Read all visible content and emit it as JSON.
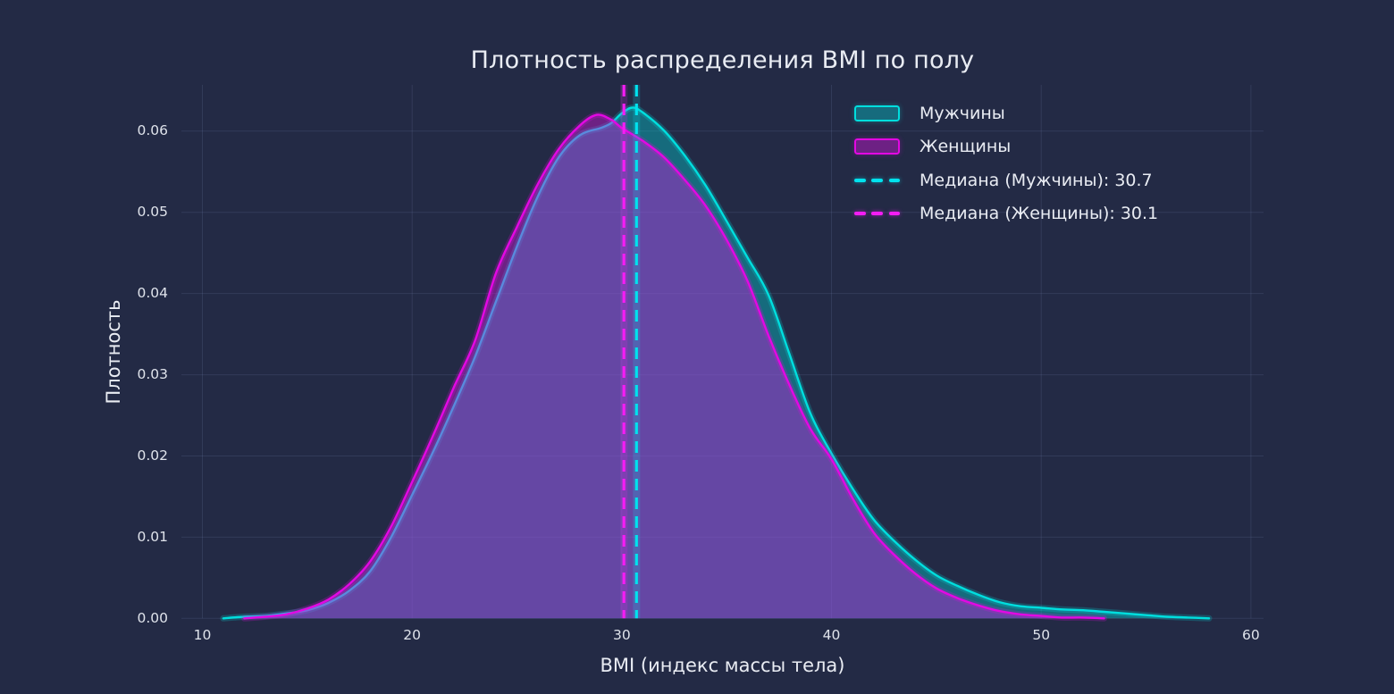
{
  "figure": {
    "background": "#232a45",
    "text_color": "#e9ecf3",
    "tick_color": "#dfe3eb",
    "grid_color": "rgba(145,165,215,0.14)"
  },
  "title": "Плотность распределения BMI по полу",
  "axes": {
    "x": {
      "label": "BMI (индекс массы тела)",
      "ticks": [
        "10",
        "20",
        "30",
        "40",
        "50",
        "60"
      ],
      "tick_values": [
        10,
        20,
        30,
        40,
        50,
        60
      ]
    },
    "y": {
      "label": "Плотность",
      "ticks": [
        "0.00",
        "0.01",
        "0.02",
        "0.03",
        "0.04",
        "0.05",
        "0.06"
      ],
      "tick_values": [
        0,
        0.01,
        0.02,
        0.03,
        0.04,
        0.05,
        0.06
      ]
    }
  },
  "chart_data": {
    "type": "area",
    "title": "Плотность распределения BMI по полу",
    "xlabel": "BMI (индекс массы тела)",
    "ylabel": "Плотность",
    "xlim": [
      9.0,
      60.6
    ],
    "ylim": [
      0,
      0.0657
    ],
    "grid": true,
    "legend_position": "upper right",
    "series": [
      {
        "name": "Мужчины",
        "line_color": "#00dede",
        "fill_color": "rgba(0,229,229,0.35)",
        "median": 30.7,
        "points": [
          [
            11,
            0
          ],
          [
            12,
            0.0002
          ],
          [
            13,
            0.0003
          ],
          [
            14,
            0.0006
          ],
          [
            15,
            0.001
          ],
          [
            16,
            0.0019
          ],
          [
            17,
            0.0034
          ],
          [
            18,
            0.0058
          ],
          [
            19,
            0.01
          ],
          [
            20,
            0.0152
          ],
          [
            21,
            0.0205
          ],
          [
            22,
            0.0262
          ],
          [
            23,
            0.0322
          ],
          [
            24,
            0.039
          ],
          [
            25,
            0.0458
          ],
          [
            26,
            0.052
          ],
          [
            27,
            0.0568
          ],
          [
            28,
            0.0595
          ],
          [
            29,
            0.0604
          ],
          [
            29.5,
            0.061
          ],
          [
            30,
            0.0622
          ],
          [
            30.5,
            0.0629
          ],
          [
            31,
            0.0623
          ],
          [
            32,
            0.0601
          ],
          [
            33,
            0.057
          ],
          [
            34,
            0.0533
          ],
          [
            35,
            0.0489
          ],
          [
            36,
            0.0444
          ],
          [
            37,
            0.0398
          ],
          [
            38,
            0.0325
          ],
          [
            39,
            0.0252
          ],
          [
            40,
            0.0203
          ],
          [
            41,
            0.016
          ],
          [
            42,
            0.0122
          ],
          [
            43,
            0.0095
          ],
          [
            44,
            0.0072
          ],
          [
            45,
            0.0053
          ],
          [
            46,
            0.004
          ],
          [
            47,
            0.0029
          ],
          [
            48,
            0.002
          ],
          [
            49,
            0.0015
          ],
          [
            50,
            0.0013
          ],
          [
            51,
            0.0011
          ],
          [
            52,
            0.001
          ],
          [
            53,
            0.0008
          ],
          [
            54,
            0.0006
          ],
          [
            55,
            0.0004
          ],
          [
            56,
            0.0002
          ],
          [
            57,
            0.0001
          ],
          [
            58,
            0
          ]
        ]
      },
      {
        "name": "Женщины",
        "line_color": "#e308e3",
        "fill_color": "rgba(213,22,219,0.42)",
        "median": 30.1,
        "points": [
          [
            12,
            0
          ],
          [
            13,
            0.0002
          ],
          [
            14,
            0.0005
          ],
          [
            15,
            0.0012
          ],
          [
            16,
            0.0023
          ],
          [
            17,
            0.0042
          ],
          [
            18,
            0.007
          ],
          [
            19,
            0.0113
          ],
          [
            20,
            0.0168
          ],
          [
            21,
            0.0225
          ],
          [
            22,
            0.0285
          ],
          [
            23,
            0.0342
          ],
          [
            24,
            0.0425
          ],
          [
            25,
            0.0482
          ],
          [
            26,
            0.0535
          ],
          [
            27,
            0.0578
          ],
          [
            28,
            0.0607
          ],
          [
            28.8,
            0.062
          ],
          [
            29.5,
            0.0614
          ],
          [
            30,
            0.0604
          ],
          [
            31,
            0.0588
          ],
          [
            32,
            0.0568
          ],
          [
            33,
            0.054
          ],
          [
            34,
            0.0508
          ],
          [
            35,
            0.0466
          ],
          [
            36,
            0.0415
          ],
          [
            37,
            0.0348
          ],
          [
            38,
            0.0287
          ],
          [
            39,
            0.0233
          ],
          [
            40,
            0.0196
          ],
          [
            41,
            0.0148
          ],
          [
            42,
            0.0106
          ],
          [
            43,
            0.0078
          ],
          [
            44,
            0.0055
          ],
          [
            45,
            0.0037
          ],
          [
            46,
            0.0025
          ],
          [
            47,
            0.0016
          ],
          [
            48,
            0.0009
          ],
          [
            49,
            0.0005
          ],
          [
            50,
            0.0003
          ],
          [
            51,
            0.0001
          ],
          [
            52,
            0.0001
          ],
          [
            53,
            0
          ]
        ]
      }
    ],
    "medians": [
      {
        "label": "Медиана (Мужчины): 30.7",
        "value": 30.7,
        "color": "#00e2ee"
      },
      {
        "label": "Медиана (Женщины): 30.1",
        "value": 30.1,
        "color": "#f41df4"
      }
    ]
  }
}
